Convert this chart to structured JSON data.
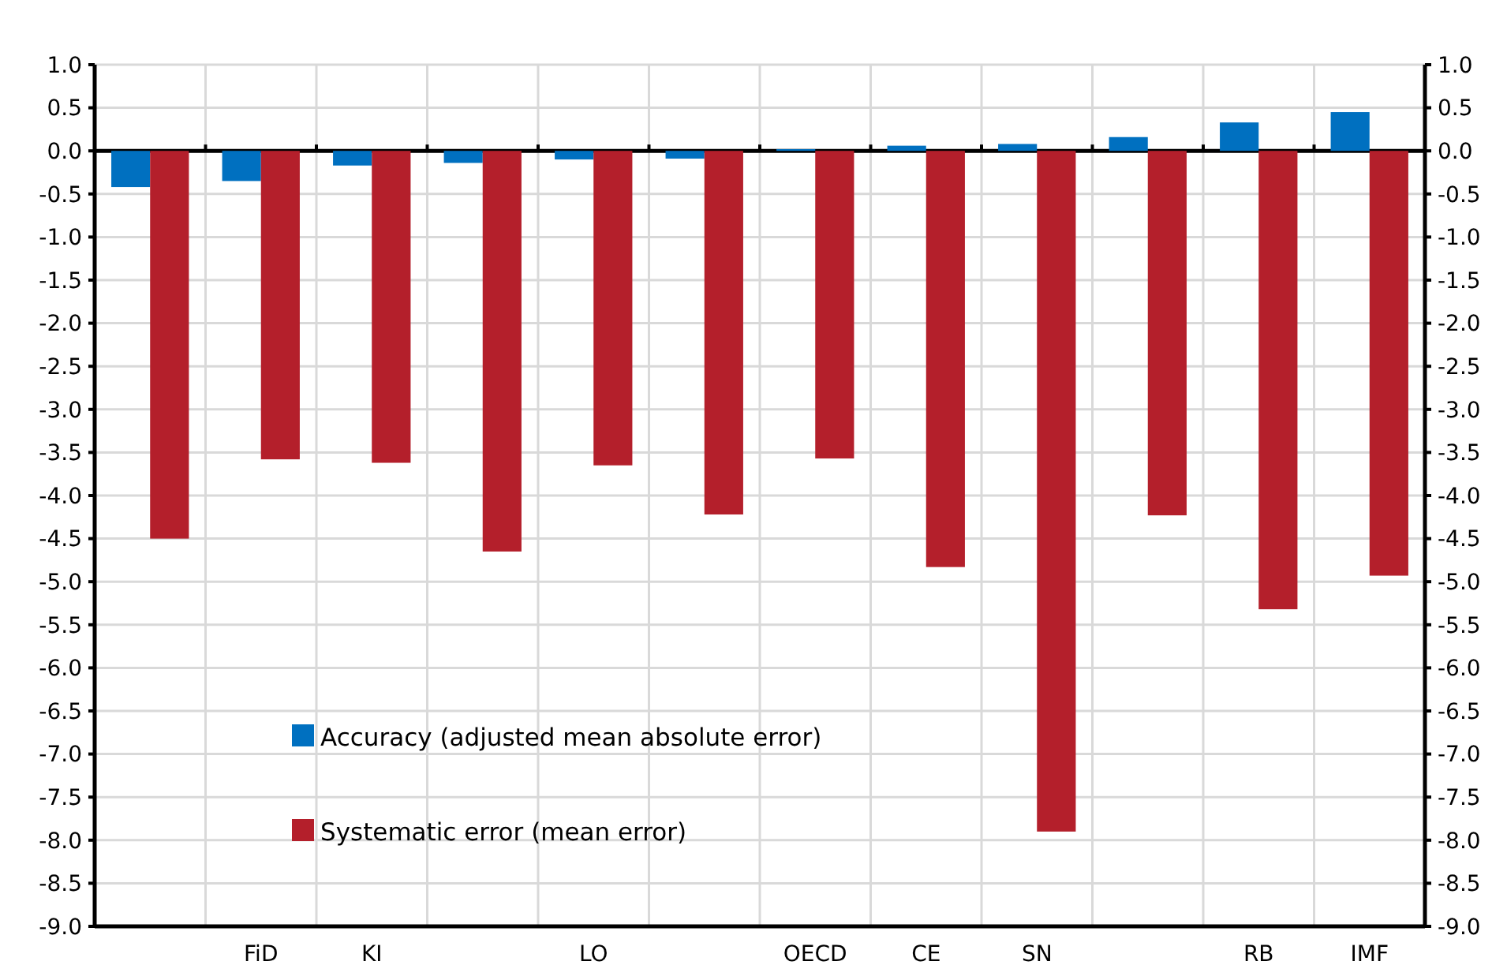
{
  "chart_data": {
    "type": "bar",
    "categories": [
      null,
      "FiD",
      "KI",
      null,
      "LO",
      null,
      "OECD",
      "CE",
      "SN",
      null,
      "RB",
      "IMF"
    ],
    "series": [
      {
        "name": "Accuracy (adjusted mean absolute error)",
        "color": "#0070c0",
        "values": [
          -0.42,
          -0.35,
          -0.17,
          -0.14,
          -0.1,
          -0.09,
          0.02,
          0.06,
          0.08,
          0.16,
          0.33,
          0.45
        ]
      },
      {
        "name": "Systematic error (mean error)",
        "color": "#b41f2b",
        "values": [
          -4.5,
          -3.58,
          -3.62,
          -4.65,
          -3.65,
          -4.22,
          -3.57,
          -4.83,
          -7.9,
          -4.23,
          -5.32,
          -4.93
        ]
      }
    ],
    "ylim": [
      -9,
      1
    ],
    "yticks": [
      {
        "value": 1,
        "label": "1.0"
      },
      {
        "value": 0.5,
        "label": "0.5"
      },
      {
        "value": 0,
        "label": "0.0"
      },
      {
        "value": -0.5,
        "label": "-0.5"
      },
      {
        "value": -1,
        "label": "-1.0"
      },
      {
        "value": -1.5,
        "label": "-1.5"
      },
      {
        "value": -2,
        "label": "-2.0"
      },
      {
        "value": -2.5,
        "label": "-2.5"
      },
      {
        "value": -3,
        "label": "-3.0"
      },
      {
        "value": -3.5,
        "label": "-3.5"
      },
      {
        "value": -4,
        "label": "-4.0"
      },
      {
        "value": -4.5,
        "label": "-4.5"
      },
      {
        "value": -5,
        "label": "-5.0"
      },
      {
        "value": -5.5,
        "label": "-5.5"
      },
      {
        "value": -6,
        "label": "-6.0"
      },
      {
        "value": -6.5,
        "label": "-6.5"
      },
      {
        "value": -7,
        "label": "-7.0"
      },
      {
        "value": -7.5,
        "label": "-7.5"
      },
      {
        "value": -8,
        "label": "-8.0"
      },
      {
        "value": -8.5,
        "label": "-8.5"
      },
      {
        "value": -9,
        "label": "-9.0"
      }
    ],
    "y2lim": [
      -9,
      1
    ],
    "y2ticks": [
      {
        "value": 1,
        "label": "1.0"
      },
      {
        "value": 0.5,
        "label": "0.5"
      },
      {
        "value": 0,
        "label": "0.0"
      },
      {
        "value": -0.5,
        "label": "-0.5"
      },
      {
        "value": -1,
        "label": "-1.0"
      },
      {
        "value": -1.5,
        "label": "-1.5"
      },
      {
        "value": -2,
        "label": "-2.0"
      },
      {
        "value": -2.5,
        "label": "-2.5"
      },
      {
        "value": -3,
        "label": "-3.0"
      },
      {
        "value": -3.5,
        "label": "-3.5"
      },
      {
        "value": -4,
        "label": "-4.0"
      },
      {
        "value": -4.5,
        "label": "-4.5"
      },
      {
        "value": -5,
        "label": "-5.0"
      },
      {
        "value": -5.5,
        "label": "-5.5"
      },
      {
        "value": -6,
        "label": "-6.0"
      },
      {
        "value": -6.5,
        "label": "-6.5"
      },
      {
        "value": -7,
        "label": "-7.0"
      },
      {
        "value": -7.5,
        "label": "-7.5"
      },
      {
        "value": -8,
        "label": "-8.0"
      },
      {
        "value": -8.5,
        "label": "-8.5"
      },
      {
        "value": -9,
        "label": "-9.0"
      }
    ],
    "grid": true,
    "legend": "bottom left"
  }
}
